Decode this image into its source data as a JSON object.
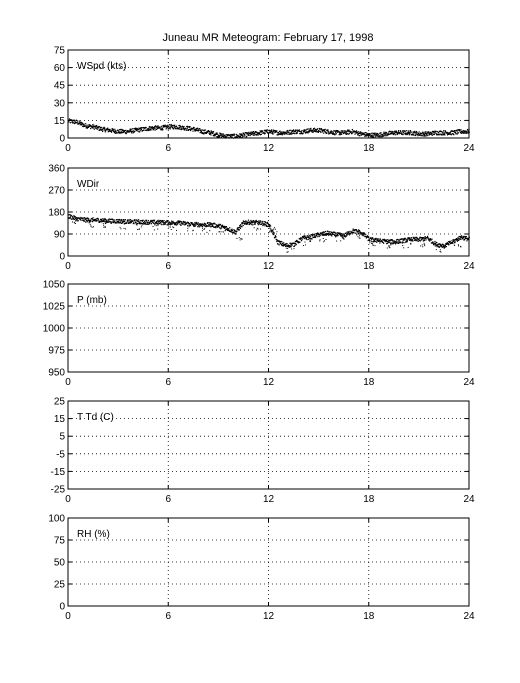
{
  "title": "Juneau MR Meteogram:  February 17, 1998",
  "chart_data": [
    {
      "type": "scatter",
      "label": "WSpd (kts)",
      "xlim": [
        0,
        24
      ],
      "xticks": [
        0,
        6,
        12,
        18,
        24
      ],
      "ylim": [
        0,
        75
      ],
      "yticks": [
        0,
        15,
        30,
        45,
        60,
        75
      ],
      "grid": true,
      "x": [
        0,
        0.5,
        1,
        1.5,
        2,
        2.5,
        3,
        3.5,
        4,
        4.5,
        5,
        5.5,
        6,
        6.5,
        7,
        7.5,
        8,
        8.5,
        9,
        9.5,
        10,
        10.5,
        11,
        11.5,
        12,
        12.5,
        13,
        13.5,
        14,
        14.5,
        15,
        15.5,
        16,
        16.5,
        17,
        17.5,
        18,
        18.5,
        19,
        19.5,
        20,
        20.5,
        21,
        21.5,
        22,
        22.5,
        23,
        23.5,
        24
      ],
      "y": [
        15,
        14,
        11,
        10,
        8,
        7,
        6,
        6,
        7,
        8,
        9,
        9,
        10,
        10,
        9,
        8,
        6,
        5,
        3,
        2,
        2,
        3,
        4,
        5,
        6,
        5,
        5,
        6,
        6,
        7,
        7,
        6,
        5,
        5,
        6,
        4,
        3,
        3,
        4,
        5,
        5,
        5,
        4,
        4,
        5,
        5,
        5,
        6,
        6
      ]
    },
    {
      "type": "scatter",
      "label": "WDir",
      "xlim": [
        0,
        24
      ],
      "xticks": [
        0,
        6,
        12,
        18,
        24
      ],
      "ylim": [
        0,
        360
      ],
      "yticks": [
        0,
        90,
        180,
        270,
        360
      ],
      "grid": true,
      "x": [
        0,
        0.5,
        1,
        1.5,
        2,
        2.5,
        3,
        3.5,
        4,
        4.5,
        5,
        5.5,
        6,
        6.5,
        7,
        7.5,
        8,
        8.5,
        9,
        9.5,
        10,
        10.5,
        11,
        11.5,
        12,
        12.5,
        13,
        13.5,
        14,
        14.5,
        15,
        15.5,
        16,
        16.5,
        17,
        17.5,
        18,
        18.5,
        19,
        19.5,
        20,
        20.5,
        21,
        21.5,
        22,
        22.5,
        23,
        23.5,
        24
      ],
      "y": [
        165,
        155,
        150,
        150,
        148,
        145,
        145,
        143,
        142,
        142,
        140,
        140,
        138,
        138,
        135,
        132,
        130,
        130,
        125,
        115,
        100,
        140,
        140,
        138,
        130,
        60,
        45,
        50,
        75,
        80,
        90,
        95,
        90,
        85,
        105,
        100,
        70,
        65,
        62,
        60,
        65,
        70,
        70,
        75,
        50,
        45,
        60,
        80,
        70
      ]
    },
    {
      "type": "line",
      "label": "P (mb)",
      "xlim": [
        0,
        24
      ],
      "xticks": [
        0,
        6,
        12,
        18,
        24
      ],
      "ylim": [
        950,
        1050
      ],
      "yticks": [
        950,
        975,
        1000,
        1025,
        1050
      ],
      "grid": true,
      "x": [],
      "y": []
    },
    {
      "type": "line",
      "label": "T Td (C)",
      "xlim": [
        0,
        24
      ],
      "xticks": [
        0,
        6,
        12,
        18,
        24
      ],
      "ylim": [
        -25,
        25
      ],
      "yticks": [
        -25,
        -15,
        -5,
        5,
        15,
        25
      ],
      "grid": true,
      "x": [],
      "y": []
    },
    {
      "type": "line",
      "label": "RH (%)",
      "xlim": [
        0,
        24
      ],
      "xticks": [
        0,
        6,
        12,
        18,
        24
      ],
      "ylim": [
        0,
        100
      ],
      "yticks": [
        0,
        25,
        50,
        75,
        100
      ],
      "grid": true,
      "x": [],
      "y": []
    }
  ]
}
